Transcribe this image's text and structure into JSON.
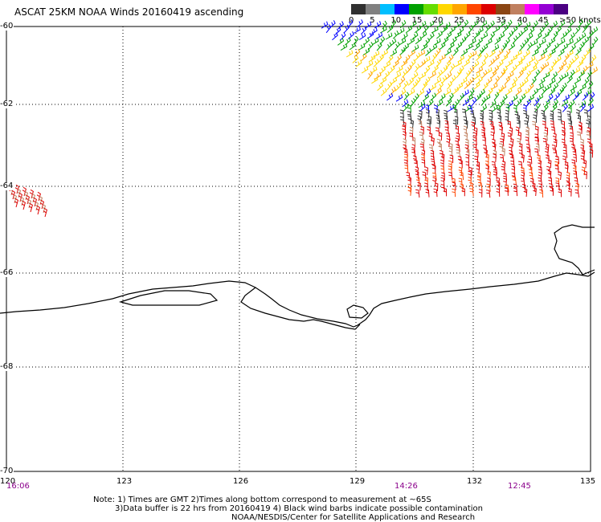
{
  "title": "ASCAT 25KM NOAA Winds 20160419 ascending",
  "legend": {
    "colors": [
      "#303030",
      "#808080",
      "#00bfff",
      "#0000ff",
      "#00a000",
      "#66dd00",
      "#ffd700",
      "#ffa500",
      "#ff4500",
      "#dd0000",
      "#8b4513",
      "#c08060",
      "#ff00ff",
      "#9400d3",
      "#4b0082"
    ],
    "labels": [
      "0",
      "5",
      "10",
      "15",
      "20",
      "25",
      "30",
      "35",
      "40",
      "45",
      ">50 knots"
    ]
  },
  "lat_labels": [
    "-60",
    "-62",
    "-64",
    "-66",
    "-68",
    "-70"
  ],
  "lon_labels": [
    "120",
    "123",
    "126",
    "129",
    "132",
    "135"
  ],
  "time_labels": [
    "16:06",
    "14:26",
    "12:45"
  ],
  "notes": {
    "line1": "Note: 1) Times are GMT 2)Times along bottom correspond to measurement at ~65S",
    "line2": "3)Data buffer is 22 hrs from 20160419 4) Black wind barbs indicate possible contamination",
    "line3": "NOAA/NESDIS/Center for Satellite Applications and Research"
  },
  "map": {
    "lat_range": [
      -70,
      -60
    ],
    "lon_range": [
      120,
      135
    ],
    "grid": "dotted"
  }
}
